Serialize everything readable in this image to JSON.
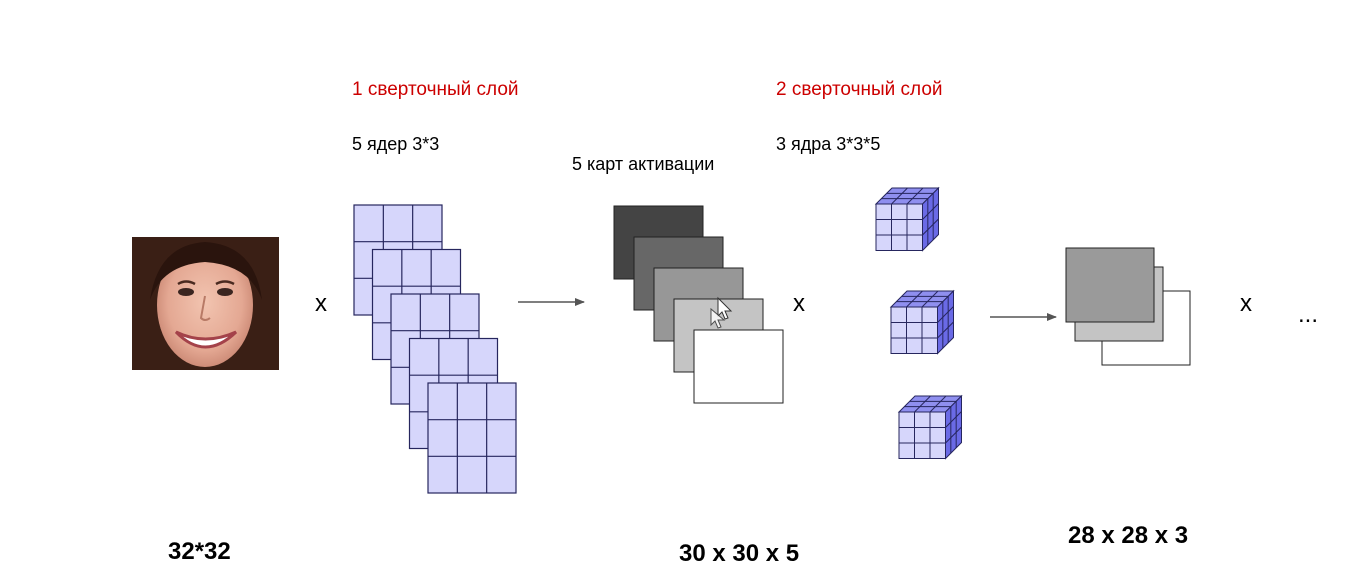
{
  "layer1": {
    "title": "1 сверточный слой",
    "kernels_label": "5 ядер 3*3"
  },
  "activation_maps_label": "5 карт активации",
  "layer2": {
    "title": "2 сверточный слой",
    "kernels_label": "3 ядра 3*3*5"
  },
  "input_size": "32*32",
  "output1_size": "30 x 30 x 5",
  "output2_size": "28 x 28 x 3",
  "operators": {
    "multiply": "x",
    "continuation": "..."
  },
  "diagram": {
    "kernel_count_layer1": 5,
    "kernel_grid_size": 3,
    "activation_map_count": 5,
    "kernel_count_layer2": 3,
    "output_map_count": 3
  },
  "colors": {
    "layer_title": "#cc0000",
    "kernel_fill": "#d6d6fb",
    "kernel_grid": "#26265e",
    "cube_front": "#d6d6fb",
    "cube_top": "#8f8fef",
    "cube_side": "#6a6ae6",
    "arrow": "#555555",
    "activation_map_shades": [
      "#444444",
      "#676767",
      "#979797",
      "#c4c4c4",
      "#ffffff"
    ],
    "output_map_shades": [
      "#9a9a9a",
      "#c4c4c4",
      "#ffffff"
    ]
  }
}
